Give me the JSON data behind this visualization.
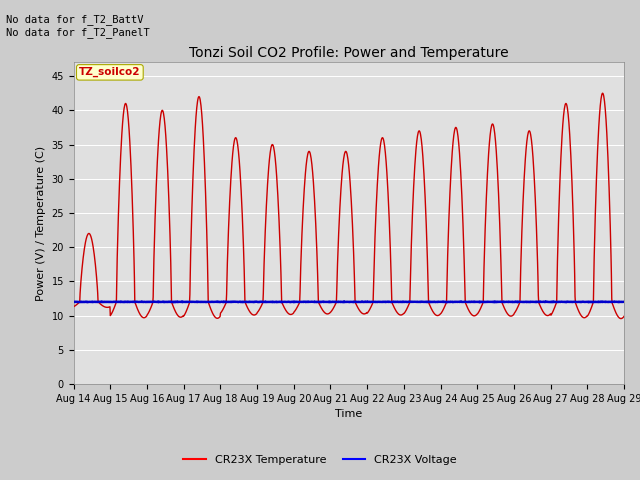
{
  "title": "Tonzi Soil CO2 Profile: Power and Temperature",
  "ylabel": "Power (V) / Temperature (C)",
  "xlabel": "Time",
  "top_left_text": "No data for f_T2_BattV\nNo data for f_T2_PanelT",
  "legend_label_text": "TZ_soilco2",
  "legend_entries": [
    "CR23X Temperature",
    "CR23X Voltage"
  ],
  "legend_colors": [
    "#ff0000",
    "#0000ff"
  ],
  "ylim": [
    0,
    47
  ],
  "yticks": [
    0,
    5,
    10,
    15,
    20,
    25,
    30,
    35,
    40,
    45
  ],
  "x_tick_days": [
    14,
    15,
    16,
    17,
    18,
    19,
    20,
    21,
    22,
    23,
    24,
    25,
    26,
    27,
    28,
    29
  ],
  "x_tick_labels": [
    "Aug 14",
    "Aug 15",
    "Aug 16",
    "Aug 17",
    "Aug 18",
    "Aug 19",
    "Aug 20",
    "Aug 21",
    "Aug 22",
    "Aug 23",
    "Aug 24",
    "Aug 25",
    "Aug 26",
    "Aug 27",
    "Aug 28",
    "Aug 29"
  ],
  "bg_color": "#cccccc",
  "plot_bg_color": "#e0e0e0",
  "temp_color": "#cc0000",
  "volt_color": "#0000cc",
  "temp_linewidth": 1.0,
  "volt_linewidth": 1.8,
  "volt_value": 12.0,
  "title_fontsize": 10,
  "axis_label_fontsize": 8,
  "tick_fontsize": 7,
  "legend_fontsize": 8
}
